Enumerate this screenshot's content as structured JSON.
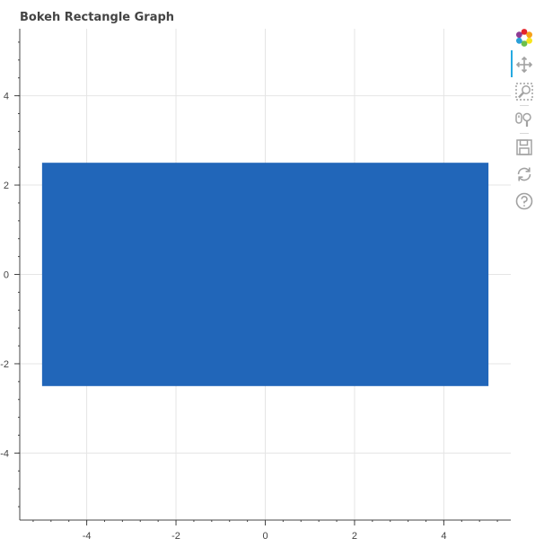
{
  "chart_data": {
    "type": "bar",
    "title": "Bokeh Rectangle Graph",
    "xlabel": "",
    "ylabel": "",
    "xlim": [
      -5.5,
      5.5
    ],
    "ylim": [
      -5.5,
      5.5
    ],
    "x_ticks": [
      -4,
      -2,
      0,
      2,
      4
    ],
    "y_ticks": [
      -4,
      -2,
      0,
      2,
      4
    ],
    "grid": true,
    "rectangles": [
      {
        "x": 0,
        "y": 0,
        "width": 10,
        "height": 5
      }
    ]
  },
  "colors": {
    "rect_fill": "#2166b9",
    "grid": "#e5e5e5",
    "axis": "#444444",
    "tick_label": "#444444",
    "toolbar_active": "#26aae1",
    "toolbar_icon": "#a2a2a2"
  },
  "toolbar": {
    "items": [
      {
        "name": "bokeh-logo-icon",
        "interactable": true
      },
      {
        "name": "pan-icon",
        "interactable": true
      },
      {
        "name": "box-zoom-icon",
        "interactable": true
      },
      {
        "name": "wheel-zoom-icon",
        "interactable": true
      },
      {
        "name": "save-icon",
        "interactable": true
      },
      {
        "name": "reset-icon",
        "interactable": true
      },
      {
        "name": "help-icon",
        "interactable": true
      }
    ],
    "active_tool": "pan-icon"
  }
}
